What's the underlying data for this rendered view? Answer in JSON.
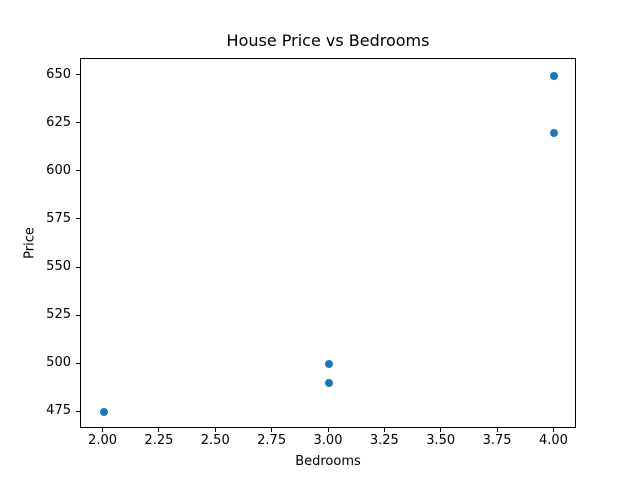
{
  "chart_data": {
    "type": "scatter",
    "title": "House Price vs Bedrooms",
    "xlabel": "Bedrooms",
    "ylabel": "Price",
    "points": [
      {
        "x": 2,
        "y": 475
      },
      {
        "x": 3,
        "y": 490
      },
      {
        "x": 3,
        "y": 500
      },
      {
        "x": 4,
        "y": 620
      },
      {
        "x": 4,
        "y": 650
      }
    ],
    "xlim": [
      1.9,
      4.1
    ],
    "ylim": [
      466.25,
      658.75
    ],
    "xticks": [
      2.0,
      2.25,
      2.5,
      2.75,
      3.0,
      3.25,
      3.5,
      3.75,
      4.0
    ],
    "xtick_labels": [
      "2.00",
      "2.25",
      "2.50",
      "2.75",
      "3.00",
      "3.25",
      "3.50",
      "3.75",
      "4.00"
    ],
    "yticks": [
      475,
      500,
      525,
      550,
      575,
      600,
      625,
      650
    ],
    "ytick_labels": [
      "475",
      "500",
      "525",
      "550",
      "575",
      "600",
      "625",
      "650"
    ],
    "marker_color": "#1f77b4",
    "marker_diameter_px": 8,
    "grid": false,
    "legend": null,
    "background_color": "#ffffff",
    "spine_color": "#000000"
  }
}
